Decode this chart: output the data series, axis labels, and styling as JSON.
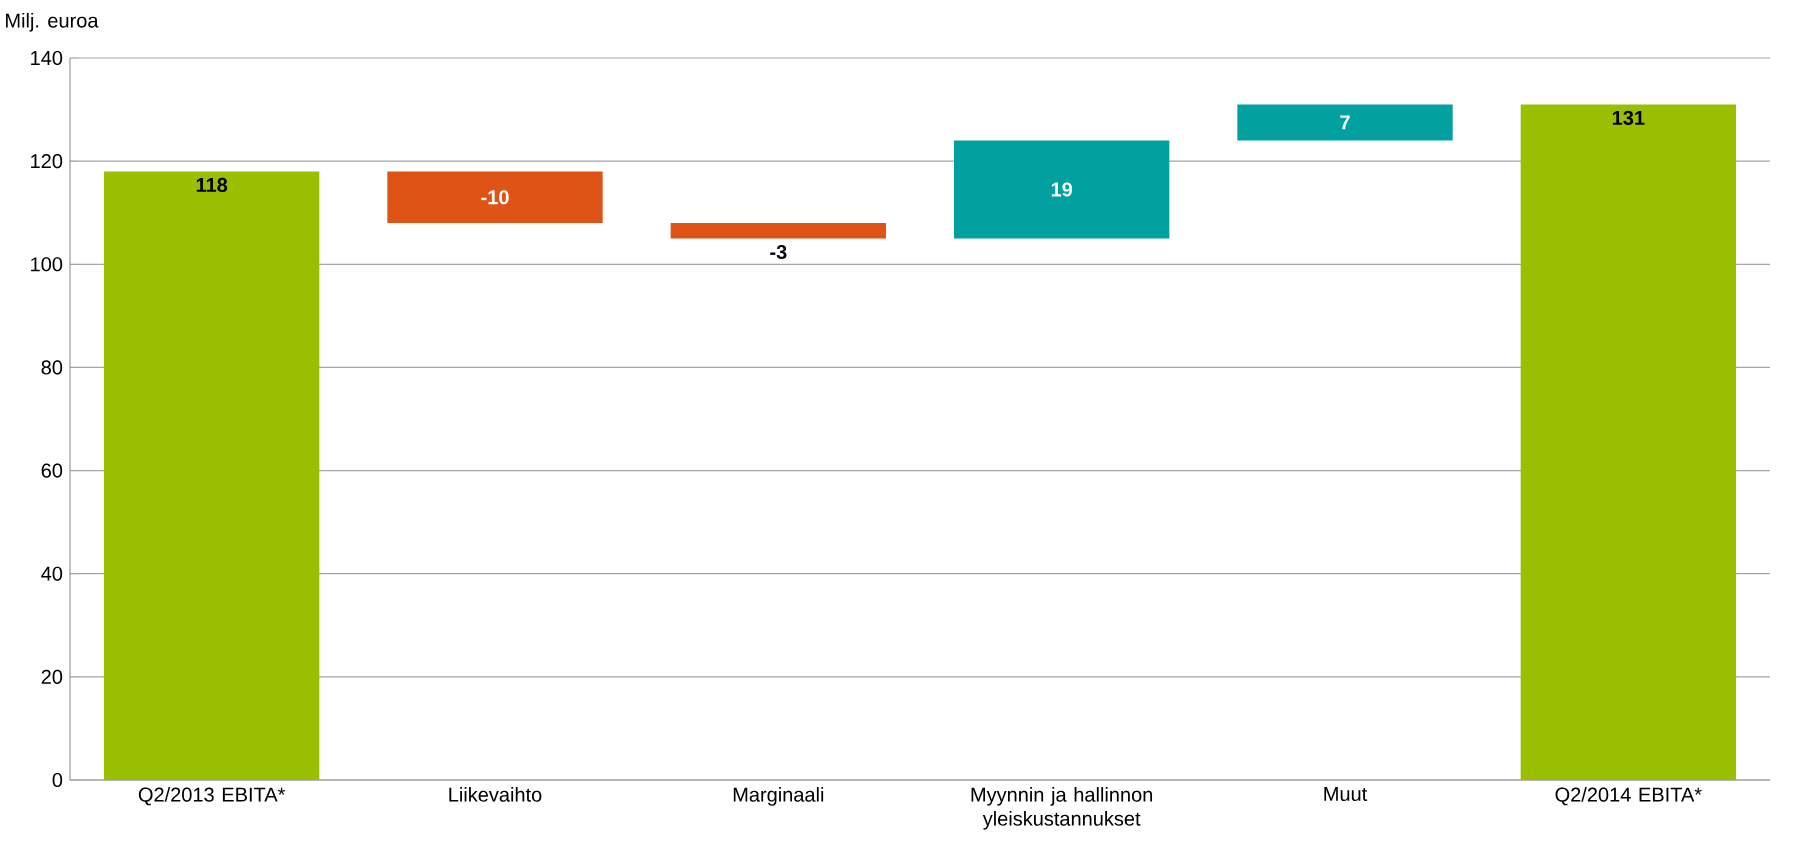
{
  "chart_data": {
    "type": "bar",
    "ylabel": "Milj. euroa",
    "categories": [
      "Q2/2013 EBITA*",
      "Liikevaihto",
      "Marginaali",
      "Myynnin ja hallinnon yleiskustannukset",
      "Muut",
      "Q2/2014 EBITA*"
    ],
    "values": [
      118,
      -10,
      -3,
      19,
      7,
      131
    ],
    "base": [
      0,
      118,
      108,
      105,
      124,
      0
    ],
    "colors": [
      "#99bf00",
      "#e05316",
      "#e05316",
      "#00a19f",
      "#00a19f",
      "#99bf00"
    ],
    "data_labels": true,
    "ylim": [
      0,
      140
    ],
    "yticks": [
      0,
      20,
      40,
      60,
      80,
      100,
      120,
      140
    ],
    "grid": "y"
  }
}
